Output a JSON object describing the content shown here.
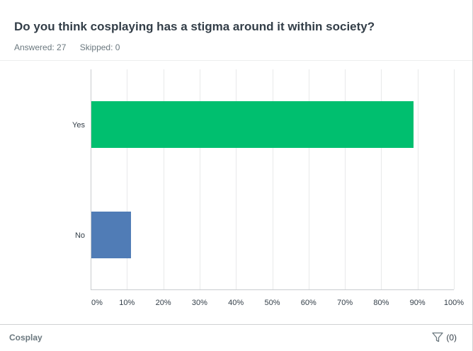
{
  "question": {
    "title": "Do you think cosplaying has a stigma around it within society?",
    "answered": "Answered: 27",
    "skipped": "Skipped: 0"
  },
  "footer": {
    "label": "Cosplay",
    "filter_count": "(0)",
    "filter_icon": "filter-icon"
  },
  "colors": {
    "yes": "#00bf6f",
    "no": "#507cb6",
    "grid": "#e8e9ea",
    "axis": "#c9cccf",
    "tick_text": "#333e48"
  },
  "chart_data": {
    "type": "bar",
    "orientation": "horizontal",
    "categories": [
      "Yes",
      "No"
    ],
    "values": [
      88.89,
      11.11
    ],
    "unit": "%",
    "xlim": [
      0,
      100
    ],
    "xticks": [
      "0%",
      "10%",
      "20%",
      "30%",
      "40%",
      "50%",
      "60%",
      "70%",
      "80%",
      "90%",
      "100%"
    ],
    "grid": true,
    "title": "",
    "xlabel": "",
    "ylabel": ""
  }
}
